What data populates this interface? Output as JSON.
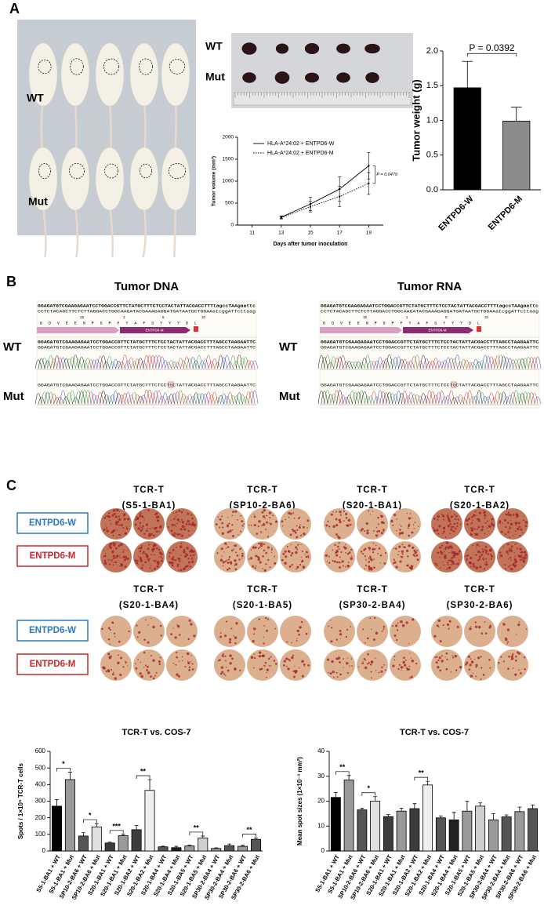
{
  "panel_labels": [
    "A",
    "B",
    "C"
  ],
  "panel_a": {
    "mouse_labels": [
      "WT",
      "Mut"
    ],
    "tumor_labels": [
      "WT",
      "Mut"
    ]
  },
  "panel_b": [
    {
      "title": "Tumor DNA",
      "reference": "GGAGATGTCGAAGAGAATCCTGGACCGTTCTATGCTTTCTCCTACTATTACGACCTTTtagccTAAgaattc",
      "complement": "CCTCTACAGCTTCTCTTAGGACCTGGCAAGATACGAAAGAGGATGATAATGCTGGAAatcggATTcttaag",
      "translation": "G D V E E N P G P F Y A F S Y Y Y D L",
      "translation_numbers": [
        "15",
        "1",
        "5",
        "10"
      ],
      "feature": "ENTPD6-M",
      "consensus": "GGAGATGTCGAAGAGAATCCTGGACCGTTCTATGCTTTCTCCTACTATTACGACCTTTAGCCTAAGAATTC",
      "sample_labels": [
        "WT",
        "Mut"
      ],
      "reads": [
        "GGAGATGTCGAAGAGAATCCTGGACCGTTCTATGCTTTCTCCTACTATTACGACCTTTAGCCTAAGAATTC",
        "GGAGATGTCGAAGAGAATCCTGGACCGTTCTATGCTTTCTCCTGCTATTACGACCTTTAGCCTAAGAATTC"
      ]
    },
    {
      "title": "Tumor RNA",
      "reference": "GGAGATGTCGAAGAGAATCCTGGACCGTTCTATGCTTTCTCCTACTATTACGACCTTTtagccTAAgaattc",
      "complement": "CCTCTACAGCTTCTCTTAGGACCTGGCAAGATACGAAAGAGGATGATAATGCTGGAAatcggATTcttaag",
      "translation": "G D V E E N P G P F Y A F S Y Y Y D L",
      "translation_numbers": [
        "15",
        "1",
        "5",
        "10"
      ],
      "feature": "ENTPD6-M",
      "consensus": "GGAGATGTCGAAGAGAATCCTGGACCGTTCTATGCTTTCTCCTACTATTACGACCTTTAGCCTAAGAATTC",
      "sample_labels": [
        "WT",
        "Mut"
      ],
      "reads": [
        "GGAGATGTCGAAGAGAATCCTGGACCGTTCTATGCTTTCTCCTACTATTACGACCTTTAGCCTAAGAATTC",
        "GGAGATGTCGAAGAGAATCCTGGACCGTTCTATGCTTTCTCCTGCTATTACGACCTTTAGCCTAAGAATTC"
      ]
    }
  ],
  "panel_c": {
    "row_labels": [
      "ENTPD6-W",
      "ENTPD6-M"
    ],
    "groups": [
      {
        "line1": "TCR-T",
        "line2": "(S5-1-BA1)"
      },
      {
        "line1": "TCR-T",
        "line2": "(SP10-2-BA6)"
      },
      {
        "line1": "TCR-T",
        "line2": "(S20-1-BA1)"
      },
      {
        "line1": "TCR-T",
        "line2": "(S20-1-BA2)"
      },
      {
        "line1": "TCR-T",
        "line2": "(S20-1-BA4)"
      },
      {
        "line1": "TCR-T",
        "line2": "(S20-1-BA5)"
      },
      {
        "line1": "TCR-T",
        "line2": "(SP30-2-BA4)"
      },
      {
        "line1": "TCR-T",
        "line2": "(SP30-2-BA6)"
      }
    ]
  },
  "chart_data": [
    {
      "type": "line",
      "xlabel": "Days after tumor inoculation",
      "ylabel": "Tumor volume (mm³)",
      "x": [
        13,
        15,
        17,
        19
      ],
      "xlim": [
        10,
        20
      ],
      "xticks": [
        11,
        13,
        15,
        17,
        19
      ],
      "ylim": [
        0,
        2000
      ],
      "yticks": [
        0,
        500,
        1000,
        1500,
        2000
      ],
      "series": [
        {
          "name": "HLA-A*24:02 + ENTPD6-W",
          "color": "#000000",
          "line_style": "solid",
          "values": [
            180,
            480,
            820,
            1350
          ],
          "errors": [
            30,
            150,
            280,
            300
          ]
        },
        {
          "name": "HLA-A*24:02 + ENTPD6-M",
          "color": "#000000",
          "line_style": "dotted",
          "values": [
            170,
            420,
            650,
            950
          ],
          "errors": [
            30,
            120,
            230,
            250
          ]
        }
      ],
      "p_value_label": "P = 0.0479"
    },
    {
      "type": "bar",
      "ylabel": "Tumor weight (g)",
      "categories": [
        "ENTPD6-W",
        "ENTPD6-M"
      ],
      "values": [
        1.47,
        0.99
      ],
      "errors": [
        0.38,
        0.2
      ],
      "colors": [
        "#000000",
        "#8c8c8c"
      ],
      "ylim": [
        0,
        2
      ],
      "yticks": [
        {
          "value": 0,
          "label": "0.0"
        },
        0.5,
        {
          "value": 1,
          "label": "1.0"
        },
        1.5,
        {
          "value": 2,
          "label": "2.0"
        }
      ],
      "p_value_label": "P = 0.0392"
    },
    {
      "type": "bar",
      "title": "TCR-T vs. COS-7",
      "ylabel": "Spots / 1×10⁵ TCR-T cells",
      "categories": [
        "S5-1-BA1 + WT",
        "S5-1-BA1 + Mut",
        "SP10-2-BA6 + WT",
        "SP10-2-BA6 + Mut",
        "S20-1-BA1 + WT",
        "S20-1-BA1 + Mut",
        "S20-1-BA2 + WT",
        "S20-1-BA2 + Mut",
        "S20-1-BA4 + WT",
        "S20-1-BA4 + Mut",
        "S20-1-BA5 + WT",
        "S20-1-BA5 + Mut",
        "SP30-2-BA4 + WT",
        "SP30-2-BA4 + Mut",
        "SP30-2-BA6 + WT",
        "SP30-2-BA6 + Mut"
      ],
      "values": [
        270,
        430,
        90,
        145,
        48,
        92,
        128,
        365,
        25,
        20,
        30,
        78,
        15,
        32,
        28,
        70
      ],
      "errors": [
        40,
        45,
        20,
        20,
        5,
        8,
        25,
        65,
        4,
        8,
        5,
        12,
        4,
        10,
        6,
        8
      ],
      "colors": [
        "#000000",
        "#9a9a9a",
        "#555555",
        "#e0e0e0",
        "#3c3c3c",
        "#9a9a9a",
        "#3c3c3c",
        "#eeeeee",
        "#555555",
        "#222222",
        "#9a9a9a",
        "#cfcfcf",
        "#9a9a9a",
        "#555555",
        "#9a9a9a",
        "#555555"
      ],
      "ylim": [
        0,
        600
      ],
      "yticks": [
        0,
        100,
        200,
        300,
        400,
        500,
        600
      ],
      "significance": [
        "*",
        "*",
        "***",
        "**",
        null,
        "**",
        null,
        "**"
      ]
    },
    {
      "type": "bar",
      "title": "TCR-T vs. COS-7",
      "ylabel": "Mean spot sizes (1×10⁻³ mm²)",
      "categories": [
        "S5-1-BA1 + WT",
        "S5-1-BA1 + Mut",
        "SP10-2-BA6 + WT",
        "SP10-2-BA6 + Mut",
        "S20-1-BA1 + WT",
        "S20-1-BA1 + Mut",
        "S20-1-BA2 + WT",
        "S20-1-BA2 + Mut",
        "S20-1-BA4 + WT",
        "S20-1-BA4 + Mut",
        "S20-1-BA5 + WT",
        "S20-1-BA5 + Mut",
        "SP30-2-BA4 + WT",
        "SP30-2-BA4 + Mut",
        "SP30-2-BA6 + WT",
        "SP30-2-BA6 + Mut"
      ],
      "values": [
        21.5,
        28.5,
        16.5,
        20,
        13.8,
        16,
        17,
        26.5,
        13.3,
        12.5,
        16,
        18,
        12.5,
        13.7,
        15.8,
        17
      ],
      "errors": [
        2,
        1.8,
        0.7,
        1.8,
        0.8,
        1.2,
        2,
        1.5,
        0.8,
        3,
        4,
        1.3,
        2.5,
        0.8,
        1.8,
        1.5
      ],
      "colors": [
        "#000000",
        "#9a9a9a",
        "#555555",
        "#e0e0e0",
        "#3c3c3c",
        "#9a9a9a",
        "#3c3c3c",
        "#eeeeee",
        "#555555",
        "#222222",
        "#9a9a9a",
        "#cfcfcf",
        "#9a9a9a",
        "#555555",
        "#9a9a9a",
        "#555555"
      ],
      "ylim": [
        0,
        40
      ],
      "yticks": [
        0,
        10,
        20,
        30,
        40
      ],
      "significance": [
        "**",
        "*",
        null,
        "**",
        null,
        null,
        null,
        null
      ]
    }
  ]
}
